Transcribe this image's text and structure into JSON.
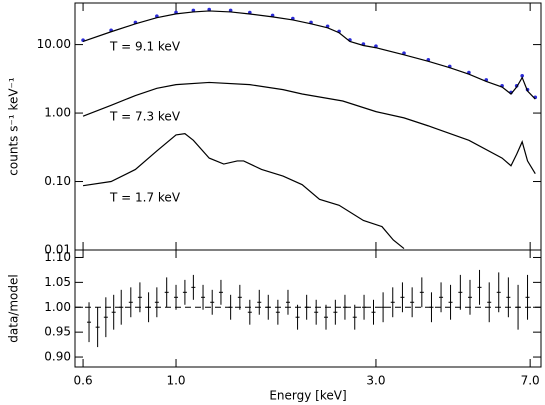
{
  "chart_data": [
    {
      "type": "line",
      "xlog": true,
      "ylog": true,
      "ylabel": "counts s⁻¹ keV⁻¹",
      "xlim": [
        0.574,
        7.43
      ],
      "ylim": [
        0.01,
        40.5
      ],
      "xticks": [
        0.6,
        {
          "value": 1,
          "label": "1.0"
        },
        {
          "value": 3,
          "label": "3.0"
        },
        {
          "value": 7,
          "label": "7.0"
        }
      ],
      "yticks": [
        0.01,
        {
          "value": 0.1,
          "label": "0.10"
        },
        {
          "value": 1,
          "label": "1.00"
        },
        {
          "value": 10,
          "label": "10.00"
        }
      ],
      "series": [
        {
          "color": "#2b2bd6",
          "marker": "dot",
          "x": [
            0.6,
            0.7,
            0.8,
            0.9,
            1.0,
            1.1,
            1.2,
            1.35,
            1.5,
            1.7,
            1.9,
            2.1,
            2.3,
            2.45,
            2.6,
            2.8,
            3.0,
            3.5,
            4.0,
            4.5,
            5.0,
            5.5,
            6.0,
            6.3,
            6.5,
            6.7,
            6.9,
            7.2
          ],
          "values": [
            11.6,
            16.2,
            21.1,
            26,
            29.5,
            31.5,
            32.5,
            31.5,
            29.4,
            26.7,
            24,
            21.1,
            18.5,
            15.6,
            11.7,
            10.2,
            9.5,
            7.5,
            6.0,
            4.8,
            3.9,
            3.05,
            2.5,
            2.0,
            2.5,
            3.5,
            2.2,
            1.7
          ]
        },
        {
          "color": "#000000",
          "label": "T = 9.1 keV",
          "x": [
            0.6,
            0.7,
            0.8,
            0.9,
            1.0,
            1.1,
            1.2,
            1.35,
            1.5,
            1.7,
            1.9,
            2.1,
            2.3,
            2.45,
            2.6,
            2.8,
            3.0,
            3.5,
            4.0,
            4.5,
            5.0,
            5.5,
            6.0,
            6.3,
            6.5,
            6.7,
            6.9,
            7.2
          ],
          "values": [
            11.1,
            15.4,
            20.1,
            24.7,
            28.1,
            30,
            31,
            30,
            28,
            25.4,
            22.9,
            20.1,
            17.6,
            14.9,
            11.1,
            9.7,
            9.0,
            7.1,
            5.7,
            4.6,
            3.7,
            2.9,
            2.4,
            1.9,
            2.4,
            3.3,
            2.1,
            1.6
          ]
        },
        {
          "color": "#000000",
          "label": "T = 7.3 keV",
          "x": [
            0.6,
            0.7,
            0.8,
            0.9,
            1.0,
            1.2,
            1.5,
            1.8,
            2.0,
            2.5,
            3.0,
            3.5,
            4.0,
            5.0,
            6.0,
            6.3,
            6.5,
            6.7,
            6.9,
            7.2
          ],
          "values": [
            0.9,
            1.3,
            1.8,
            2.3,
            2.6,
            2.8,
            2.6,
            2.2,
            1.9,
            1.5,
            1.05,
            0.85,
            0.65,
            0.4,
            0.22,
            0.17,
            0.25,
            0.38,
            0.2,
            0.13
          ]
        },
        {
          "color": "#000000",
          "label": "T = 1.7 keV",
          "x": [
            0.6,
            0.7,
            0.8,
            0.9,
            1.0,
            1.05,
            1.1,
            1.2,
            1.3,
            1.4,
            1.45,
            1.6,
            1.8,
            2.0,
            2.2,
            2.45,
            2.8,
            3.1,
            3.3,
            3.5
          ],
          "values": [
            0.087,
            0.1,
            0.15,
            0.28,
            0.48,
            0.5,
            0.4,
            0.22,
            0.18,
            0.2,
            0.2,
            0.15,
            0.12,
            0.09,
            0.055,
            0.045,
            0.027,
            0.022,
            0.014,
            0.0105
          ]
        }
      ]
    },
    {
      "type": "errorbar",
      "xlog": true,
      "ylog": false,
      "xlabel": "Energy [keV]",
      "ylabel": "data/model",
      "xlim": [
        0.574,
        7.43
      ],
      "ylim": [
        0.88,
        1.115
      ],
      "reference": 1,
      "xticks": [
        0.6,
        {
          "value": 1,
          "label": "1.0"
        },
        {
          "value": 3,
          "label": "3.0"
        },
        {
          "value": 7,
          "label": "7.0"
        }
      ],
      "yticks": [
        {
          "value": 0.9,
          "label": "0.90"
        },
        0.95,
        {
          "value": 1,
          "label": "1.00"
        },
        1.05,
        {
          "value": 1.1,
          "label": "1.10"
        }
      ],
      "series": [
        {
          "color": "#000000",
          "x": [
            0.62,
            0.65,
            0.68,
            0.71,
            0.74,
            0.78,
            0.82,
            0.86,
            0.9,
            0.95,
            1.0,
            1.05,
            1.1,
            1.16,
            1.22,
            1.28,
            1.35,
            1.42,
            1.5,
            1.58,
            1.66,
            1.75,
            1.85,
            1.95,
            2.05,
            2.16,
            2.28,
            2.4,
            2.53,
            2.67,
            2.81,
            2.96,
            3.12,
            3.29,
            3.47,
            3.66,
            3.86,
            4.07,
            4.29,
            4.52,
            4.77,
            5.03,
            5.3,
            5.59,
            5.89,
            6.21,
            6.55,
            6.9
          ],
          "values": [
            0.97,
            0.96,
            0.98,
            0.99,
            1.0,
            1.01,
            1.02,
            1.0,
            1.01,
            1.03,
            1.02,
            1.03,
            1.04,
            1.02,
            1.01,
            1.03,
            1.0,
            1.02,
            0.99,
            1.01,
            1.0,
            0.99,
            1.01,
            0.98,
            1.0,
            0.99,
            0.98,
            0.99,
            1.0,
            0.98,
            1.0,
            0.99,
            1.0,
            1.01,
            1.02,
            1.01,
            1.03,
            1.0,
            1.02,
            1.01,
            1.03,
            1.02,
            1.04,
            1.01,
            1.03,
            1.02,
            1.0,
            1.02
          ],
          "errors": [
            0.04,
            0.04,
            0.04,
            0.035,
            0.035,
            0.03,
            0.03,
            0.03,
            0.03,
            0.03,
            0.025,
            0.025,
            0.025,
            0.025,
            0.025,
            0.025,
            0.025,
            0.025,
            0.025,
            0.025,
            0.025,
            0.025,
            0.025,
            0.025,
            0.025,
            0.025,
            0.025,
            0.025,
            0.025,
            0.025,
            0.025,
            0.025,
            0.03,
            0.03,
            0.03,
            0.03,
            0.03,
            0.03,
            0.03,
            0.035,
            0.035,
            0.035,
            0.035,
            0.04,
            0.04,
            0.04,
            0.045,
            0.045
          ]
        }
      ]
    }
  ]
}
